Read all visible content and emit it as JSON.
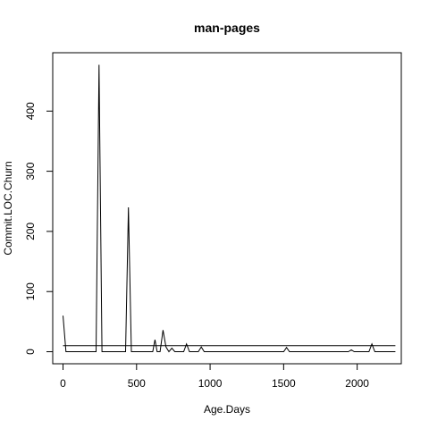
{
  "chart_data": {
    "type": "line",
    "title": "man-pages",
    "xlabel": "Age.Days",
    "ylabel": "Commit.LOC.Churn",
    "xlim": [
      -70,
      2300
    ],
    "ylim": [
      -20,
      497
    ],
    "x_ticks": [
      0,
      500,
      1000,
      1500,
      2000
    ],
    "y_ticks": [
      0,
      100,
      200,
      300,
      400
    ],
    "grid": false,
    "legend": "none",
    "series": [
      {
        "color": "#000000",
        "x": [
          0,
          20,
          225,
          245,
          265,
          425,
          445,
          465,
          610,
          625,
          640,
          660,
          680,
          700,
          720,
          740,
          760,
          780,
          820,
          840,
          860,
          880,
          920,
          940,
          960,
          1500,
          1520,
          1540,
          1940,
          1960,
          1980,
          2080,
          2100,
          2120,
          2260
        ],
        "y": [
          60,
          0,
          0,
          477,
          0,
          0,
          240,
          0,
          0,
          20,
          0,
          0,
          36,
          8,
          0,
          6,
          0,
          0,
          0,
          13,
          0,
          0,
          0,
          8,
          0,
          0,
          7,
          0,
          0,
          3,
          0,
          0,
          13,
          0,
          0
        ]
      },
      {
        "color": "#000000",
        "x": [
          0,
          2260
        ],
        "y": [
          10,
          10
        ]
      }
    ]
  }
}
